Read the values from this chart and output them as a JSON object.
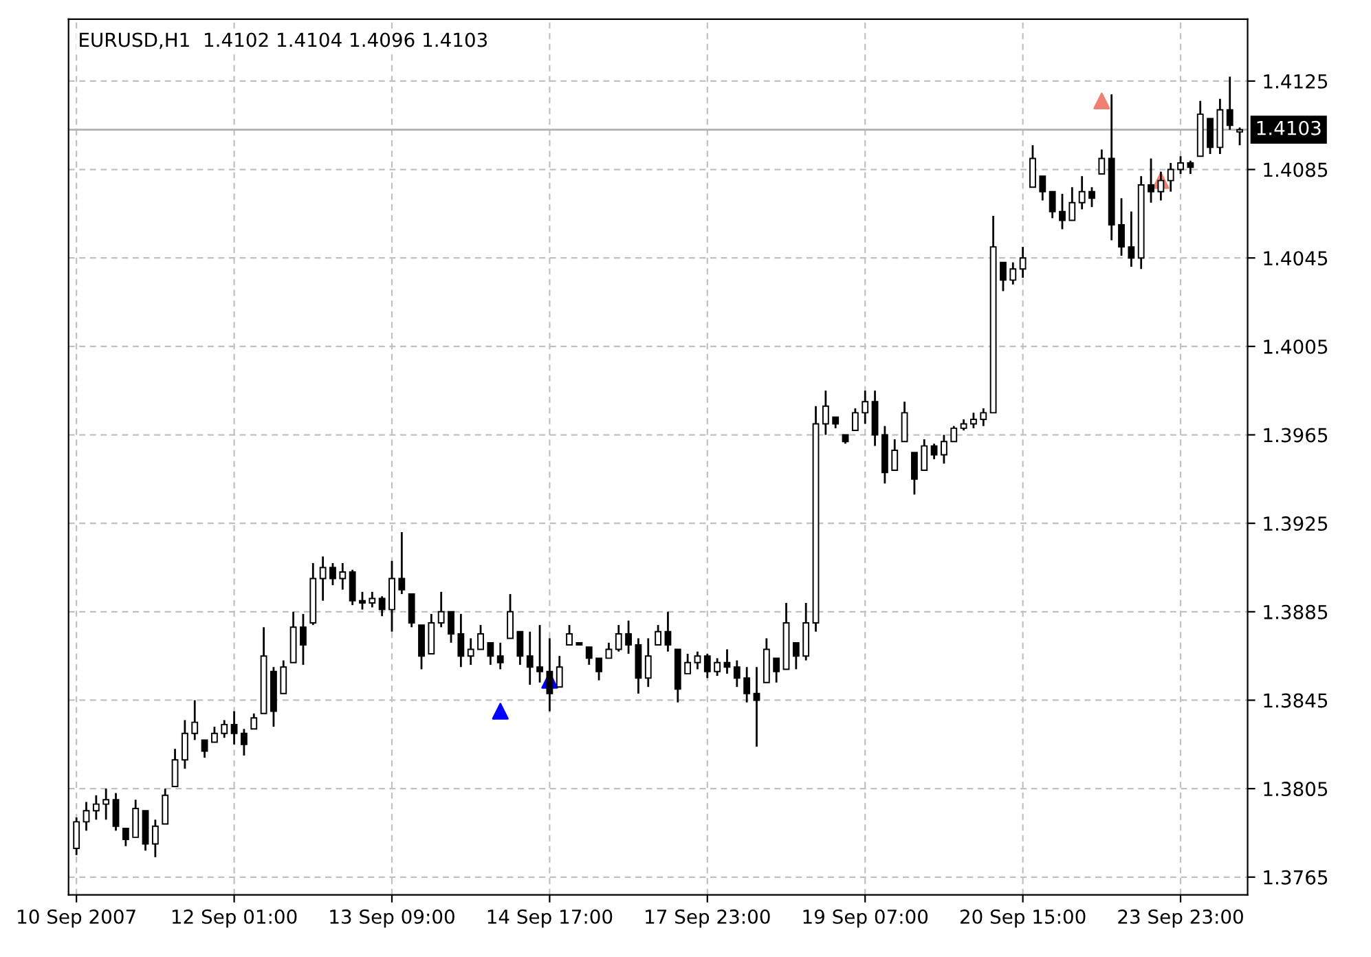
{
  "chart_data": {
    "type": "candlestick",
    "title": "EURUSD,H1  1.4102 1.4104 1.4096 1.4103",
    "color": "#000000",
    "categories": [
      "10 Sep 2007",
      null,
      null,
      null,
      null,
      null,
      null,
      null,
      null,
      null,
      null,
      null,
      null,
      null,
      null,
      null,
      "12 Sep 01:00",
      null,
      null,
      null,
      null,
      null,
      null,
      null,
      null,
      null,
      null,
      null,
      null,
      null,
      null,
      null,
      "13 Sep 09:00",
      null,
      null,
      null,
      null,
      null,
      null,
      null,
      null,
      null,
      null,
      null,
      null,
      null,
      null,
      null,
      "14 Sep 17:00",
      null,
      null,
      null,
      null,
      null,
      null,
      null,
      null,
      null,
      null,
      null,
      null,
      null,
      null,
      null,
      "17 Sep 23:00",
      null,
      null,
      null,
      null,
      null,
      null,
      null,
      null,
      null,
      null,
      null,
      null,
      null,
      null,
      null,
      "19 Sep 07:00",
      null,
      null,
      null,
      null,
      null,
      null,
      null,
      null,
      null,
      null,
      null,
      null,
      null,
      null,
      null,
      "20 Sep 15:00",
      null,
      null,
      null,
      null,
      null,
      null,
      null,
      null,
      null,
      null,
      null,
      null,
      null,
      null,
      null,
      "23 Sep 23:00",
      null,
      null,
      null,
      null,
      null,
      null
    ],
    "ohlc": [
      [
        1.3778,
        1.3792,
        1.3775,
        1.379
      ],
      [
        1.379,
        1.3799,
        1.3786,
        1.3795
      ],
      [
        1.3795,
        1.3802,
        1.3791,
        1.3798
      ],
      [
        1.3798,
        1.3805,
        1.3791,
        1.38
      ],
      [
        1.38,
        1.3803,
        1.3786,
        1.3788
      ],
      [
        1.3787,
        1.3787,
        1.3779,
        1.3782
      ],
      [
        1.3783,
        1.38,
        1.3783,
        1.3796
      ],
      [
        1.3795,
        1.3795,
        1.3777,
        1.378
      ],
      [
        1.378,
        1.3791,
        1.3774,
        1.3788
      ],
      [
        1.3789,
        1.3805,
        1.3789,
        1.3802
      ],
      [
        1.3806,
        1.3823,
        1.3806,
        1.3818
      ],
      [
        1.3818,
        1.3836,
        1.3814,
        1.383
      ],
      [
        1.383,
        1.3845,
        1.3827,
        1.3835
      ],
      [
        1.3827,
        1.3827,
        1.3819,
        1.3822
      ],
      [
        1.3826,
        1.3833,
        1.3826,
        1.383
      ],
      [
        1.383,
        1.3836,
        1.3828,
        1.3834
      ],
      [
        1.3834,
        1.384,
        1.3825,
        1.383
      ],
      [
        1.383,
        1.3832,
        1.382,
        1.3825
      ],
      [
        1.3832,
        1.3839,
        1.3832,
        1.3837
      ],
      [
        1.3839,
        1.3878,
        1.3839,
        1.3865
      ],
      [
        1.3858,
        1.386,
        1.3833,
        1.384
      ],
      [
        1.3848,
        1.3863,
        1.3848,
        1.386
      ],
      [
        1.3862,
        1.3885,
        1.3862,
        1.3878
      ],
      [
        1.3878,
        1.3884,
        1.3861,
        1.387
      ],
      [
        1.388,
        1.3907,
        1.3879,
        1.39
      ],
      [
        1.39,
        1.391,
        1.389,
        1.3905
      ],
      [
        1.3905,
        1.3907,
        1.3897,
        1.39
      ],
      [
        1.39,
        1.3907,
        1.3895,
        1.3903
      ],
      [
        1.3903,
        1.3904,
        1.3888,
        1.389
      ],
      [
        1.389,
        1.3894,
        1.3886,
        1.3889
      ],
      [
        1.3889,
        1.3894,
        1.3887,
        1.3891
      ],
      [
        1.3891,
        1.3892,
        1.3883,
        1.3886
      ],
      [
        1.3886,
        1.3908,
        1.3876,
        1.39
      ],
      [
        1.39,
        1.3921,
        1.3893,
        1.3895
      ],
      [
        1.3893,
        1.3893,
        1.3878,
        1.388
      ],
      [
        1.3879,
        1.3879,
        1.3859,
        1.3865
      ],
      [
        1.3866,
        1.3884,
        1.3866,
        1.388
      ],
      [
        1.388,
        1.3894,
        1.3878,
        1.3885
      ],
      [
        1.3885,
        1.3885,
        1.3871,
        1.3875
      ],
      [
        1.3875,
        1.3884,
        1.386,
        1.3865
      ],
      [
        1.3865,
        1.3873,
        1.3861,
        1.3868
      ],
      [
        1.3868,
        1.3879,
        1.3868,
        1.3875
      ],
      [
        1.3871,
        1.3871,
        1.3861,
        1.3865
      ],
      [
        1.3865,
        1.3871,
        1.3859,
        1.3862
      ],
      [
        1.3873,
        1.3893,
        1.3873,
        1.3885
      ],
      [
        1.3876,
        1.3876,
        1.3861,
        1.3865
      ],
      [
        1.3865,
        1.3876,
        1.3852,
        1.386
      ],
      [
        1.386,
        1.3879,
        1.3853,
        1.3858
      ],
      [
        1.3858,
        1.3873,
        1.384,
        1.3848
      ],
      [
        1.3851,
        1.3865,
        1.3851,
        1.386
      ],
      [
        1.387,
        1.3879,
        1.387,
        1.3875
      ],
      [
        1.3871,
        1.3871,
        1.387,
        1.387
      ],
      [
        1.3869,
        1.3869,
        1.3861,
        1.3864
      ],
      [
        1.3864,
        1.3864,
        1.3854,
        1.3858
      ],
      [
        1.3864,
        1.3871,
        1.3864,
        1.3868
      ],
      [
        1.3868,
        1.3879,
        1.3867,
        1.3875
      ],
      [
        1.3875,
        1.3881,
        1.3866,
        1.387
      ],
      [
        1.387,
        1.3873,
        1.3848,
        1.3855
      ],
      [
        1.3855,
        1.3873,
        1.3851,
        1.3865
      ],
      [
        1.387,
        1.3879,
        1.387,
        1.3876
      ],
      [
        1.3876,
        1.3885,
        1.3867,
        1.387
      ],
      [
        1.3868,
        1.3868,
        1.3844,
        1.385
      ],
      [
        1.3857,
        1.3866,
        1.3857,
        1.3862
      ],
      [
        1.3862,
        1.3867,
        1.3859,
        1.3865
      ],
      [
        1.3865,
        1.3866,
        1.3855,
        1.3858
      ],
      [
        1.3858,
        1.3864,
        1.3856,
        1.3862
      ],
      [
        1.3862,
        1.3868,
        1.3857,
        1.386
      ],
      [
        1.386,
        1.3863,
        1.3851,
        1.3855
      ],
      [
        1.3855,
        1.386,
        1.3844,
        1.3848
      ],
      [
        1.3848,
        1.386,
        1.3824,
        1.3845
      ],
      [
        1.3853,
        1.3873,
        1.3853,
        1.3868
      ],
      [
        1.3864,
        1.3864,
        1.3853,
        1.3858
      ],
      [
        1.3859,
        1.3889,
        1.3859,
        1.388
      ],
      [
        1.3871,
        1.3871,
        1.3859,
        1.3865
      ],
      [
        1.3865,
        1.3889,
        1.3863,
        1.388
      ],
      [
        1.388,
        1.3978,
        1.3876,
        1.397
      ],
      [
        1.397,
        1.3985,
        1.3965,
        1.3978
      ],
      [
        1.3973,
        1.3973,
        1.3968,
        1.397
      ],
      [
        1.3965,
        1.3965,
        1.3961,
        1.3962
      ],
      [
        1.3967,
        1.3977,
        1.3967,
        1.3975
      ],
      [
        1.3975,
        1.3985,
        1.397,
        1.398
      ],
      [
        1.398,
        1.3985,
        1.396,
        1.3965
      ],
      [
        1.3965,
        1.3969,
        1.3943,
        1.3948
      ],
      [
        1.3949,
        1.3963,
        1.3949,
        1.3958
      ],
      [
        1.3962,
        1.398,
        1.3962,
        1.3975
      ],
      [
        1.3957,
        1.3957,
        1.3938,
        1.3945
      ],
      [
        1.3949,
        1.3963,
        1.3949,
        1.396
      ],
      [
        1.396,
        1.3961,
        1.3954,
        1.3956
      ],
      [
        1.3956,
        1.3965,
        1.3952,
        1.3962
      ],
      [
        1.3962,
        1.3969,
        1.3962,
        1.3968
      ],
      [
        1.3968,
        1.3972,
        1.3967,
        1.397
      ],
      [
        1.397,
        1.3975,
        1.3968,
        1.3972
      ],
      [
        1.3972,
        1.3977,
        1.3969,
        1.3975
      ],
      [
        1.3975,
        1.4064,
        1.3975,
        1.405
      ],
      [
        1.4043,
        1.4043,
        1.403,
        1.4035
      ],
      [
        1.4035,
        1.4043,
        1.4033,
        1.404
      ],
      [
        1.404,
        1.405,
        1.4036,
        1.4045
      ],
      [
        1.4077,
        1.4096,
        1.4077,
        1.409
      ],
      [
        1.4082,
        1.4082,
        1.4071,
        1.4075
      ],
      [
        1.4075,
        1.4075,
        1.4063,
        1.4066
      ],
      [
        1.4066,
        1.4074,
        1.4058,
        1.4062
      ],
      [
        1.4062,
        1.4077,
        1.4062,
        1.407
      ],
      [
        1.407,
        1.4082,
        1.4067,
        1.4075
      ],
      [
        1.4075,
        1.4077,
        1.4068,
        1.4072
      ],
      [
        1.4083,
        1.4094,
        1.4083,
        1.409
      ],
      [
        1.409,
        1.4119,
        1.4053,
        1.406
      ],
      [
        1.406,
        1.4072,
        1.4046,
        1.405
      ],
      [
        1.405,
        1.4066,
        1.4041,
        1.4045
      ],
      [
        1.4045,
        1.4082,
        1.404,
        1.4078
      ],
      [
        1.4078,
        1.409,
        1.407,
        1.4075
      ],
      [
        1.4075,
        1.4084,
        1.4071,
        1.408
      ],
      [
        1.408,
        1.4088,
        1.4075,
        1.4085
      ],
      [
        1.4085,
        1.4091,
        1.4083,
        1.4088
      ],
      [
        1.4088,
        1.4089,
        1.4083,
        1.4086
      ],
      [
        1.4091,
        1.4116,
        1.4091,
        1.411
      ],
      [
        1.4108,
        1.4108,
        1.4092,
        1.4095
      ],
      [
        1.4095,
        1.4117,
        1.4092,
        1.4112
      ],
      [
        1.4112,
        1.4127,
        1.4103,
        1.4105
      ],
      [
        1.4102,
        1.4104,
        1.4096,
        1.4103
      ]
    ],
    "series": [
      {
        "type": "scatter",
        "color": "#0000ff",
        "marker": "triangle",
        "values": [
          null,
          null,
          null,
          null,
          null,
          null,
          null,
          null,
          null,
          null,
          null,
          null,
          null,
          null,
          null,
          null,
          null,
          null,
          null,
          null,
          null,
          null,
          null,
          null,
          null,
          null,
          null,
          null,
          null,
          null,
          null,
          null,
          null,
          null,
          null,
          null,
          null,
          null,
          null,
          null,
          null,
          null,
          null,
          1.384,
          null,
          null,
          null,
          null,
          1.3854,
          null,
          null,
          null,
          null,
          null,
          null,
          null,
          null,
          null,
          null,
          null,
          null,
          null,
          null,
          null,
          null,
          null,
          null,
          null,
          null,
          null,
          null,
          null,
          null,
          null,
          null,
          null,
          null,
          null,
          null,
          null,
          null,
          null,
          null,
          null,
          null,
          null,
          null,
          null,
          null,
          null,
          null,
          null,
          null,
          null,
          null,
          null,
          null,
          null,
          null,
          null,
          null,
          null,
          null,
          null,
          null,
          null,
          null,
          null,
          null,
          null,
          null,
          null,
          null,
          null,
          null,
          null,
          null,
          null,
          null
        ]
      },
      {
        "type": "scatter",
        "color": "#f08070",
        "marker": "triangle",
        "values": [
          null,
          null,
          null,
          null,
          null,
          null,
          null,
          null,
          null,
          null,
          null,
          null,
          null,
          null,
          null,
          null,
          null,
          null,
          null,
          null,
          null,
          null,
          null,
          null,
          null,
          null,
          null,
          null,
          null,
          null,
          null,
          null,
          null,
          null,
          null,
          null,
          null,
          null,
          null,
          null,
          null,
          null,
          null,
          null,
          null,
          null,
          null,
          null,
          null,
          null,
          null,
          null,
          null,
          null,
          null,
          null,
          null,
          null,
          null,
          null,
          null,
          null,
          null,
          null,
          null,
          null,
          null,
          null,
          null,
          null,
          null,
          null,
          null,
          null,
          null,
          null,
          null,
          null,
          null,
          null,
          null,
          null,
          null,
          null,
          null,
          null,
          null,
          null,
          null,
          null,
          null,
          null,
          null,
          null,
          null,
          null,
          null,
          null,
          null,
          null,
          null,
          null,
          null,
          null,
          1.4116,
          null,
          null,
          null,
          null,
          null,
          1.408,
          null,
          null,
          null,
          null,
          null,
          null,
          null,
          null
        ]
      }
    ],
    "ylim": [
      1.3757,
      1.4153
    ],
    "yticks": [
      {
        "value": 1.3765,
        "label": "1.3765"
      },
      {
        "value": 1.3805,
        "label": "1.3805"
      },
      {
        "value": 1.3845,
        "label": "1.3845"
      },
      {
        "value": 1.3885,
        "label": "1.3885"
      },
      {
        "value": 1.3925,
        "label": "1.3925"
      },
      {
        "value": 1.3965,
        "label": "1.3965"
      },
      {
        "value": 1.4005,
        "label": "1.4005"
      },
      {
        "value": 1.4045,
        "label": "1.4045"
      },
      {
        "value": 1.4085,
        "label": "1.4085"
      },
      {
        "value": 1.4125,
        "label": "1.4125"
      }
    ],
    "grid": true,
    "ref_lines": [
      {
        "axis": "y",
        "value": 1.4103,
        "label": "1.4103",
        "color": "#b0b0b0"
      }
    ]
  }
}
